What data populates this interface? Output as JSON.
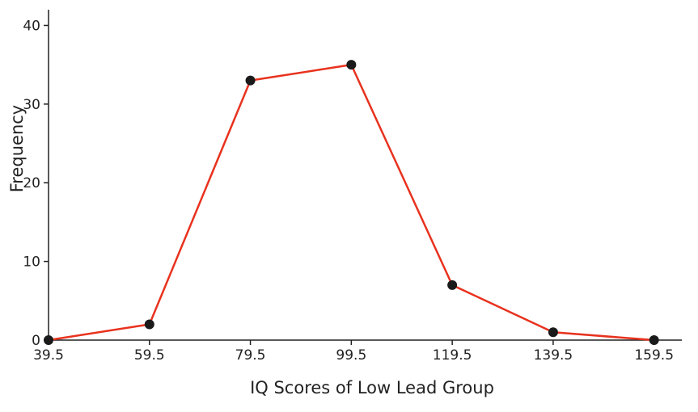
{
  "chart_data": {
    "type": "line",
    "title": "",
    "xlabel": "IQ Scores of Low Lead Group",
    "ylabel": "Frequency",
    "x": [
      39.5,
      59.5,
      79.5,
      99.5,
      119.5,
      139.5,
      159.5
    ],
    "x_tick_labels": [
      "39.5",
      "59.5",
      "79.5",
      "99.5",
      "119.5",
      "139.5",
      "159.5"
    ],
    "y_ticks": [
      0,
      10,
      20,
      30,
      40
    ],
    "y_tick_labels": [
      "0",
      "10",
      "20",
      "30",
      "40"
    ],
    "series": [
      {
        "values": [
          0,
          2,
          33,
          35,
          7,
          1,
          0
        ],
        "color": "#e8321e",
        "marker_color": "#1a1a1a"
      }
    ],
    "xlim": [
      39.5,
      165
    ],
    "ylim": [
      0,
      42
    ],
    "grid": false,
    "legend": "none"
  }
}
